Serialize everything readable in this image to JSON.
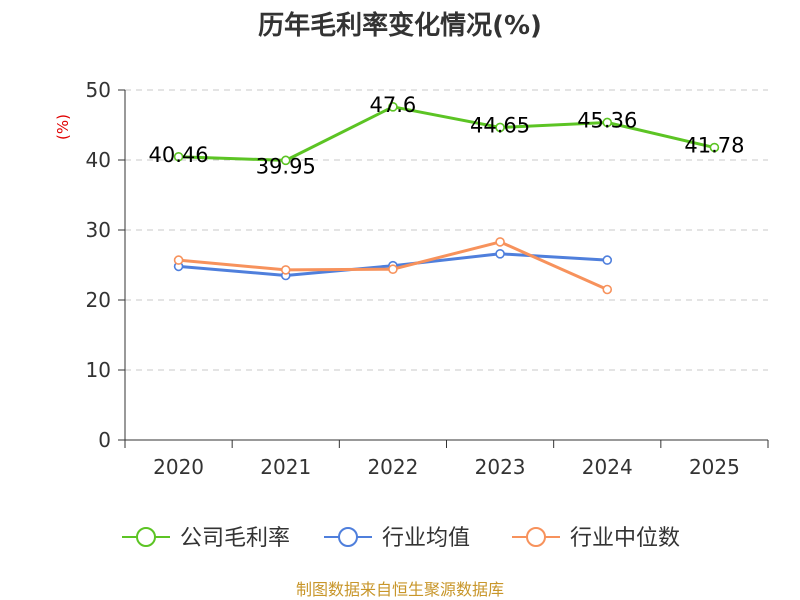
{
  "chart_data": {
    "type": "line",
    "title": "历年毛利率变化情况(%)",
    "ylabel": "(%)",
    "xlabel": "",
    "categories": [
      "2020",
      "2021",
      "2022",
      "2023",
      "2024",
      "2025"
    ],
    "ylim": [
      0,
      50
    ],
    "yticks": [
      0,
      10,
      20,
      30,
      40,
      50
    ],
    "grid": true,
    "legend_position": "bottom",
    "series": [
      {
        "name": "公司毛利率",
        "color": "#5cc424",
        "values": [
          40.46,
          39.95,
          47.6,
          44.65,
          45.36,
          41.78
        ],
        "labels": [
          "40.46",
          "39.95",
          "47.6",
          "44.65",
          "45.36",
          "41.78"
        ]
      },
      {
        "name": "行业均值",
        "color": "#4f7fdc",
        "values": [
          24.8,
          23.5,
          24.9,
          26.6,
          25.7,
          null
        ]
      },
      {
        "name": "行业中位数",
        "color": "#f7925c",
        "values": [
          25.7,
          24.3,
          24.4,
          28.3,
          21.5,
          null
        ]
      }
    ]
  },
  "source_text": "制图数据来自恒生聚源数据库"
}
